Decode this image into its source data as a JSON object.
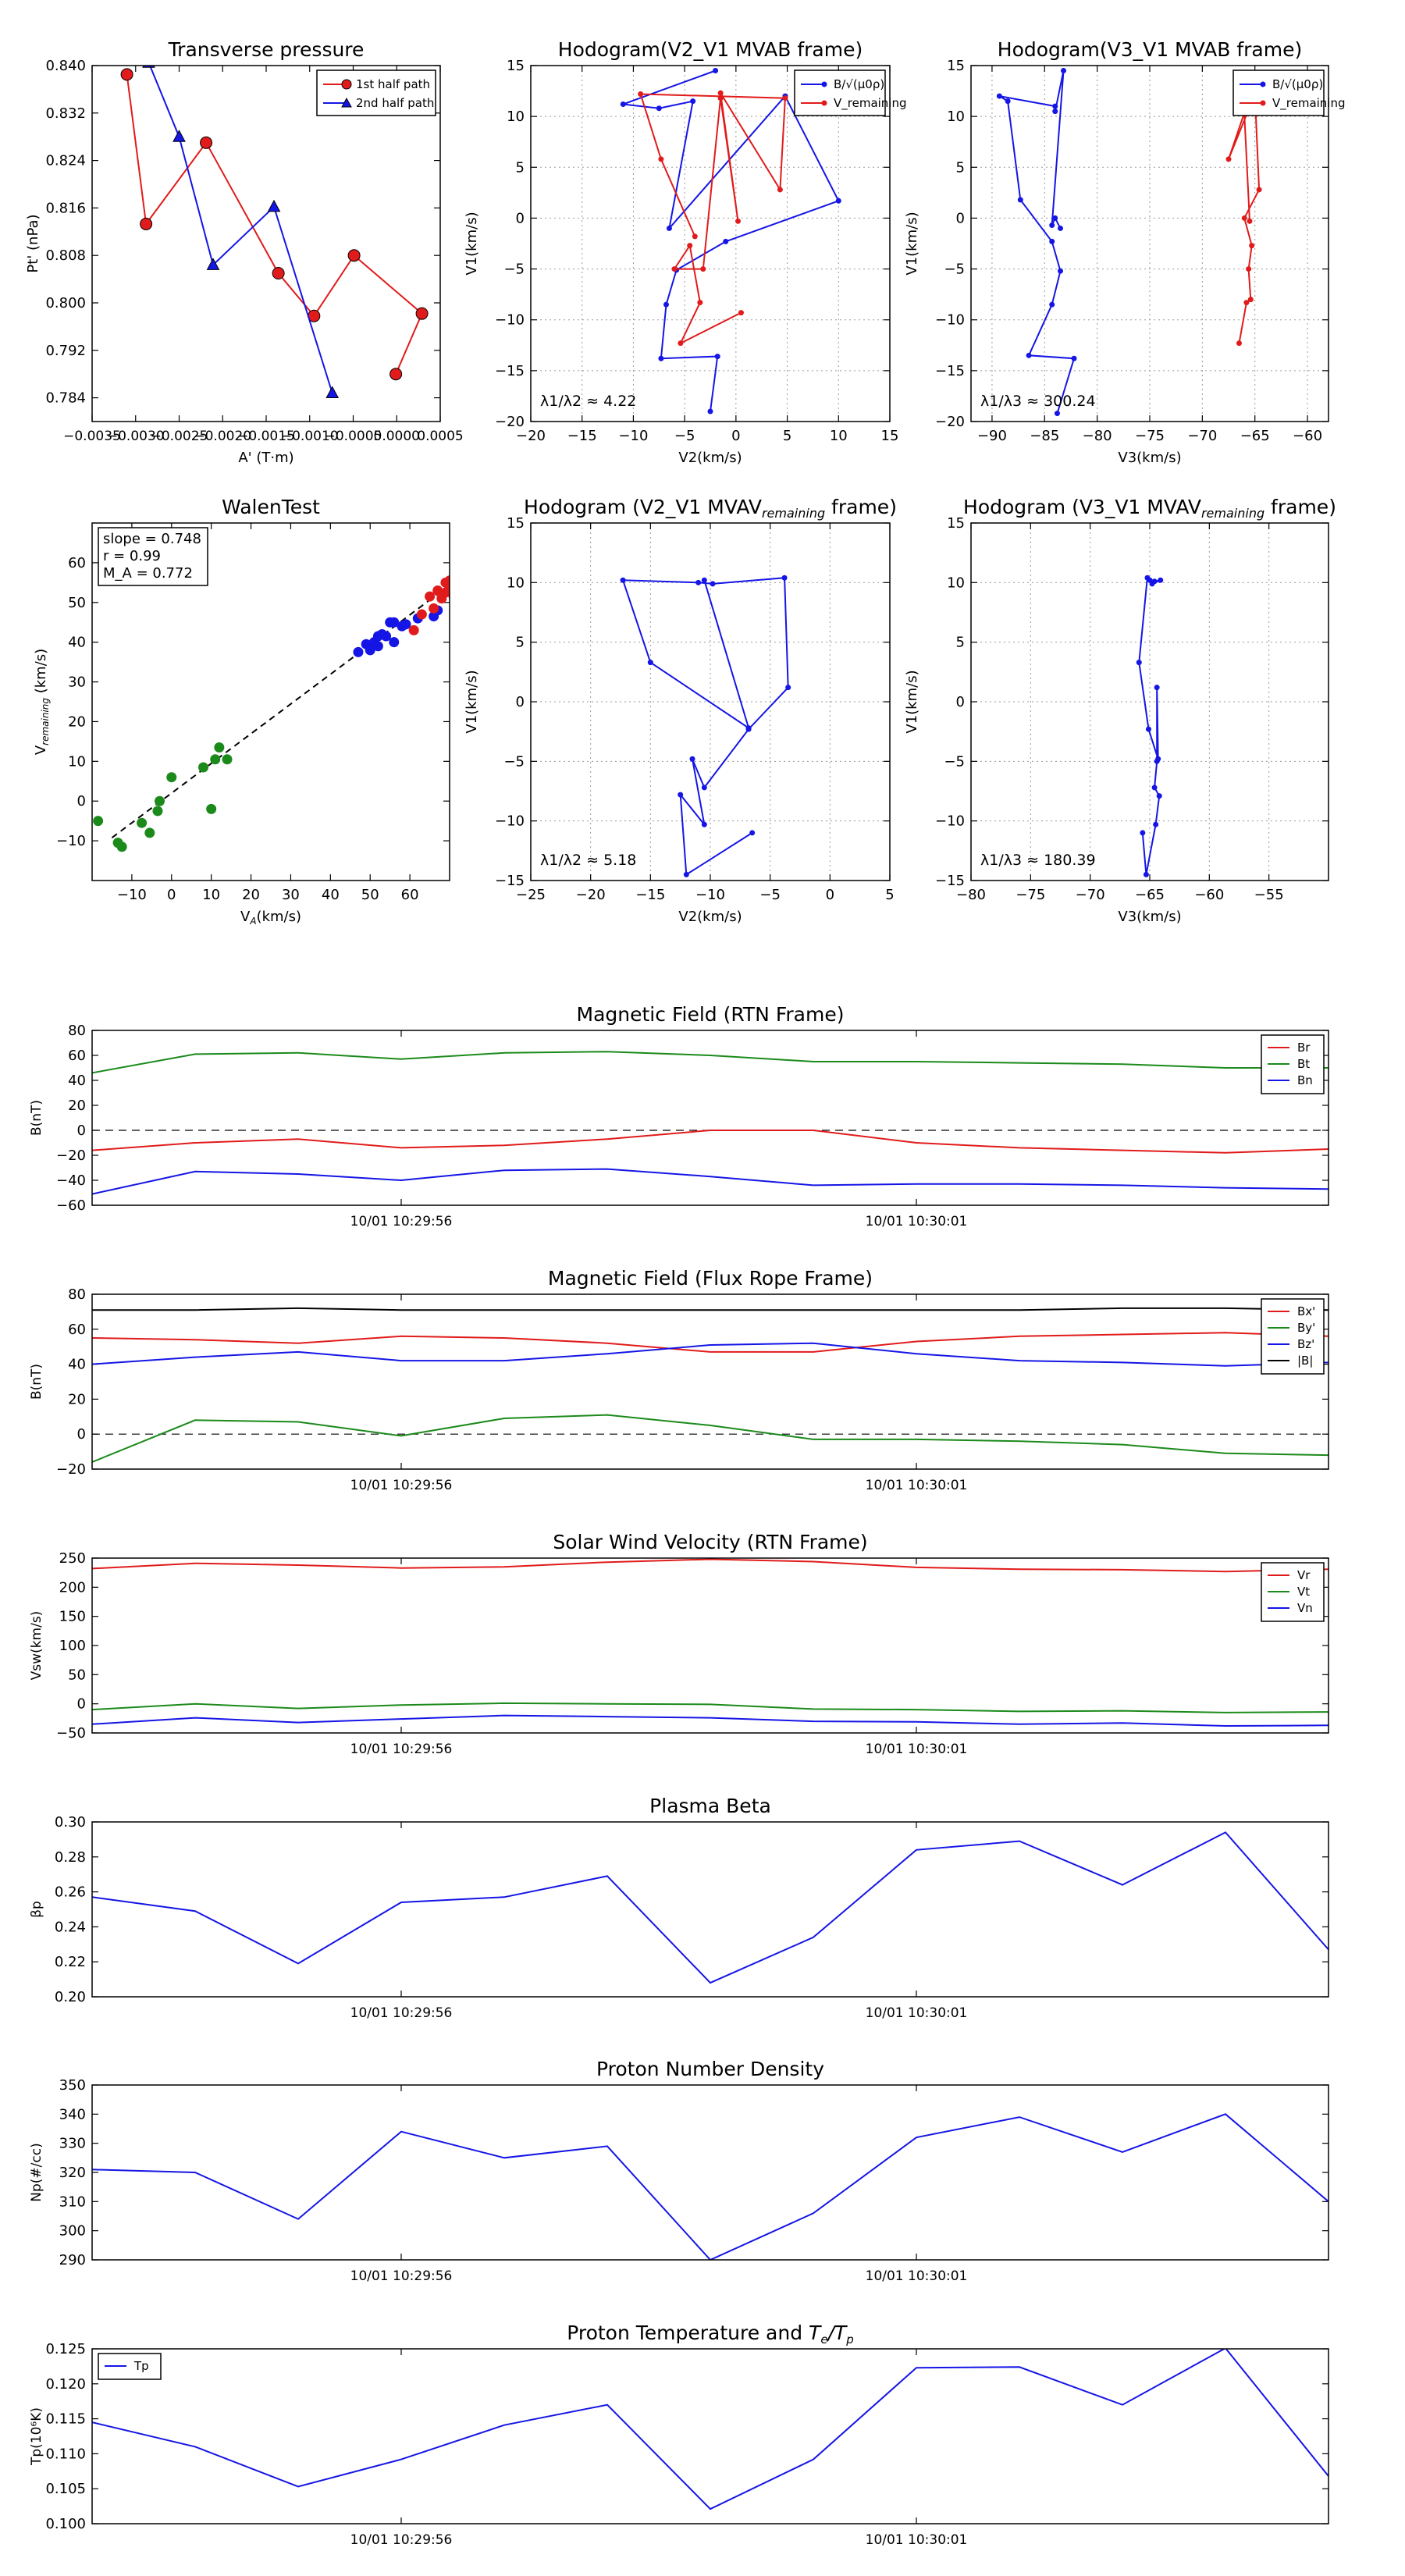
{
  "colors": {
    "red": "#e11b1b",
    "blue": "#1515e6",
    "green": "#1b8a1b",
    "black": "#000000",
    "grid": "#9a9a9a"
  },
  "chart_data": [
    {
      "id": "transverse_pressure",
      "type": "line",
      "title": "Transverse pressure",
      "xlabel": "A' (T·m)",
      "ylabel": "Pt' (nPa)",
      "xlim": [
        -0.0035,
        0.0005
      ],
      "ylim": [
        0.78,
        0.84
      ],
      "xticks": [
        -0.0035,
        -0.003,
        -0.0025,
        -0.002,
        -0.0015,
        -0.001,
        -0.0005,
        0.0,
        0.0005
      ],
      "xticklabels": [
        "−0.0035",
        "−0.0030",
        "−0.0025",
        "−0.0020",
        "−0.0015",
        "−0.0010",
        "−0.0005",
        "0.0000",
        "0.0005"
      ],
      "yticks": [
        0.784,
        0.792,
        0.8,
        0.808,
        0.816,
        0.824,
        0.832,
        0.84
      ],
      "yticklabels": [
        "0.784",
        "0.792",
        "0.800",
        "0.808",
        "0.816",
        "0.824",
        "0.832",
        "0.840"
      ],
      "grid": false,
      "legend": "top-right",
      "series": [
        {
          "name": "1st half path",
          "color": "red",
          "marker": "circle",
          "x": [
            -0.0031,
            -0.00288,
            -0.00219,
            -0.00136,
            -0.00095,
            -0.00049,
            0.00029,
            -1e-05
          ],
          "y": [
            0.8385,
            0.8133,
            0.827,
            0.805,
            0.7978,
            0.808,
            0.7982,
            0.788
          ]
        },
        {
          "name": "2nd half path",
          "color": "blue",
          "marker": "triangle",
          "x": [
            -0.00285,
            -0.0025,
            -0.00211,
            -0.00141,
            -0.00074
          ],
          "y": [
            0.8405,
            0.828,
            0.8064,
            0.8162,
            0.7848
          ]
        }
      ]
    },
    {
      "id": "hodo_v2_mvab",
      "type": "line",
      "title": "Hodogram(V2_V1 MVAB frame)",
      "xlabel": "V2(km/s)",
      "ylabel": "V1(km/s)",
      "xlim": [
        -20,
        15
      ],
      "ylim": [
        -20,
        15
      ],
      "xticks": [
        -20,
        -15,
        -10,
        -5,
        0,
        5,
        10,
        15
      ],
      "yticks": [
        -20,
        -15,
        -10,
        -5,
        0,
        5,
        10,
        15
      ],
      "grid": true,
      "legend": "top-right",
      "annotation": "λ1/λ2 ≈ 4.22",
      "series": [
        {
          "name": "B/√(μ0ρ)",
          "color": "blue",
          "marker": "dot",
          "x": [
            -2.5,
            -1.8,
            -7.3,
            -6.8,
            -5.8,
            -1.0,
            10.0,
            4.8,
            -6.5,
            -4.2,
            -7.5,
            -11.0,
            -2.0
          ],
          "y": [
            -19.0,
            -13.6,
            -13.8,
            -8.5,
            -5.1,
            -2.3,
            1.7,
            12.0,
            -1.0,
            11.5,
            10.8,
            11.2,
            14.5
          ]
        },
        {
          "name": "V_remaining",
          "color": "red",
          "marker": "dot",
          "x": [
            0.5,
            -5.4,
            -3.5,
            -4.5,
            -6.0,
            -3.2,
            -1.5,
            0.2,
            -1.5,
            4.3,
            4.8,
            -9.3,
            -7.3,
            -4.0
          ],
          "y": [
            -9.3,
            -12.3,
            -8.3,
            -2.7,
            -5.0,
            -5.0,
            11.8,
            -0.3,
            12.3,
            2.8,
            11.8,
            12.2,
            5.8,
            -1.8
          ]
        }
      ]
    },
    {
      "id": "hodo_v3_mvab",
      "type": "line",
      "title": "Hodogram(V3_V1 MVAB frame)",
      "xlabel": "V3(km/s)",
      "ylabel": "V1(km/s)",
      "xlim": [
        -92,
        -58
      ],
      "ylim": [
        -20,
        15
      ],
      "xticks": [
        -90,
        -85,
        -80,
        -75,
        -70,
        -65,
        -60
      ],
      "yticks": [
        -20,
        -15,
        -10,
        -5,
        0,
        5,
        10,
        15
      ],
      "grid": true,
      "legend": "top-right",
      "annotation": "λ1/λ3 ≈ 300.24",
      "series": [
        {
          "name": "B/√(μ0ρ)",
          "color": "blue",
          "marker": "dot",
          "x": [
            -83.8,
            -82.2,
            -86.5,
            -84.3,
            -83.5,
            -84.3,
            -87.3,
            -88.5,
            -89.3,
            -84.0,
            -84.0,
            -83.2,
            -84.3,
            -84.0,
            -83.5
          ],
          "y": [
            -19.2,
            -13.8,
            -13.5,
            -8.5,
            -5.2,
            -2.3,
            1.8,
            11.5,
            12.0,
            11.0,
            10.5,
            14.5,
            -0.7,
            0.0,
            -1.0
          ]
        },
        {
          "name": "V_remaining",
          "color": "red",
          "marker": "dot",
          "x": [
            -66.5,
            -65.8,
            -65.4,
            -65.6,
            -65.3,
            -66.0,
            -64.6,
            -65.0,
            -67.5,
            -65.2,
            -66.0,
            -65.5
          ],
          "y": [
            -12.3,
            -8.3,
            -8.0,
            -5.0,
            -2.7,
            0.0,
            2.8,
            12.2,
            5.8,
            12.8,
            10.2,
            -0.3
          ]
        }
      ]
    },
    {
      "id": "walen_test",
      "type": "scatter",
      "title": "WalenTest",
      "xlabel": "V_A(km/s)",
      "ylabel": "V_remaining (km/s)",
      "xlim": [
        -20,
        70
      ],
      "ylim": [
        -20,
        70
      ],
      "xticks": [
        -10,
        0,
        10,
        20,
        30,
        40,
        50,
        60
      ],
      "yticks": [
        -10,
        0,
        10,
        20,
        30,
        40,
        50,
        60
      ],
      "grid": false,
      "annotation": [
        "slope = 0.748",
        "r = 0.99",
        "M_A = 0.772"
      ],
      "fit": {
        "slope": 0.748,
        "intercept": 2.0,
        "x0": -15,
        "x1": 70
      },
      "series": [
        {
          "name": "green",
          "color": "green",
          "x": [
            -18.5,
            -13.5,
            -12.5,
            -7.5,
            -5.5,
            -3.5,
            -3.0,
            0.0,
            8.0,
            10.0,
            11.0,
            12.0,
            14.0
          ],
          "y": [
            -5.0,
            -10.5,
            -11.5,
            -5.5,
            -8.0,
            -2.5,
            0.0,
            6.0,
            8.5,
            -2.0,
            10.5,
            13.5,
            10.5
          ]
        },
        {
          "name": "blue",
          "color": "blue",
          "x": [
            47.0,
            49.0,
            50.0,
            51.0,
            52.0,
            52.0,
            53.0,
            54.0,
            55.0,
            56.0,
            56.0,
            58.0,
            59.0,
            62.0,
            66.0,
            67.0
          ],
          "y": [
            37.5,
            39.5,
            38.0,
            40.0,
            41.5,
            39.0,
            42.0,
            41.5,
            45.0,
            40.0,
            45.0,
            44.0,
            44.5,
            46.0,
            46.5,
            48.0
          ]
        },
        {
          "name": "red",
          "color": "red",
          "x": [
            61.0,
            63.0,
            65.0,
            66.0,
            67.0,
            68.0,
            69.0,
            69.0,
            70.0,
            70.0,
            71.0
          ],
          "y": [
            43.0,
            47.0,
            51.5,
            48.5,
            53.0,
            51.0,
            52.5,
            55.0,
            53.0,
            55.5,
            51.5
          ]
        }
      ]
    },
    {
      "id": "hodo_v2_mvav",
      "type": "line",
      "title": "Hodogram (V2_V1 MVAV_remaining frame)",
      "xlabel": "V2(km/s)",
      "ylabel": "V1(km/s)",
      "xlim": [
        -25,
        5
      ],
      "ylim": [
        -15,
        15
      ],
      "xticks": [
        -25,
        -20,
        -15,
        -10,
        -5,
        0,
        5
      ],
      "yticks": [
        -15,
        -10,
        -5,
        0,
        5,
        10,
        15
      ],
      "grid": true,
      "annotation": "λ1/λ2 ≈ 5.18",
      "series": [
        {
          "name": "B",
          "color": "blue",
          "marker": "dot",
          "x": [
            -6.5,
            -12.0,
            -12.5,
            -10.5,
            -11.5,
            -10.5,
            -6.8,
            -3.5,
            -3.8,
            -9.8,
            -11.0,
            -17.3,
            -15.0,
            -6.8,
            -10.5
          ],
          "y": [
            -11.0,
            -14.5,
            -7.8,
            -10.3,
            -4.8,
            -7.2,
            -2.3,
            1.2,
            10.4,
            9.9,
            10.0,
            10.2,
            3.3,
            -2.2,
            10.2
          ]
        }
      ]
    },
    {
      "id": "hodo_v3_mvav",
      "type": "line",
      "title": "Hodogram (V3_V1 MVAV_remaining frame)",
      "xlabel": "V3(km/s)",
      "ylabel": "V1(km/s)",
      "xlim": [
        -80,
        -50
      ],
      "ylim": [
        -15,
        15
      ],
      "xticks": [
        -80,
        -75,
        -70,
        -65,
        -60,
        -55
      ],
      "yticks": [
        -15,
        -10,
        -5,
        0,
        5,
        10,
        15
      ],
      "grid": true,
      "annotation": "λ1/λ3 ≈ 180.39",
      "series": [
        {
          "name": "B",
          "color": "blue",
          "marker": "dot",
          "x": [
            -65.6,
            -65.3,
            -64.5,
            -64.2,
            -64.6,
            -64.4,
            -64.4,
            -64.3,
            -65.1,
            -65.9,
            -65.2,
            -64.6,
            -64.1,
            -64.8,
            -65.0
          ],
          "y": [
            -11.0,
            -14.5,
            -10.3,
            -7.9,
            -7.2,
            -5.0,
            1.2,
            -4.8,
            -2.3,
            3.3,
            10.4,
            10.1,
            10.2,
            9.9,
            10.2
          ]
        }
      ]
    },
    {
      "id": "mag_rtn",
      "type": "line",
      "title": "Magnetic Field (RTN Frame)",
      "ylabel": "B(nT)",
      "ylim": [
        -60,
        80
      ],
      "yticks": [
        -60,
        -40,
        -20,
        0,
        20,
        40,
        60,
        80
      ],
      "xticklabels": [
        "10/01 10:29:56",
        "10/01 10:30:01"
      ],
      "xtickpos": [
        3,
        8
      ],
      "zero_line": true,
      "legend": "top-right",
      "grid": false,
      "series": [
        {
          "name": "Br",
          "color": "red",
          "values": [
            -16,
            -10,
            -7,
            -14,
            -12,
            -7,
            0,
            0,
            -10,
            -14,
            -16,
            -18,
            -15
          ]
        },
        {
          "name": "Bt",
          "color": "green",
          "values": [
            46,
            61,
            62,
            57,
            62,
            63,
            60,
            55,
            55,
            54,
            53,
            50,
            50
          ]
        },
        {
          "name": "Bn",
          "color": "blue",
          "values": [
            -51,
            -33,
            -35,
            -40,
            -32,
            -31,
            -37,
            -44,
            -43,
            -43,
            -44,
            -46,
            -47
          ]
        }
      ]
    },
    {
      "id": "mag_flux_rope",
      "type": "line",
      "title": "Magnetic Field (Flux Rope Frame)",
      "ylabel": "B(nT)",
      "ylim": [
        -20,
        80
      ],
      "yticks": [
        -20,
        0,
        20,
        40,
        60,
        80
      ],
      "xticklabels": [
        "10/01 10:29:56",
        "10/01 10:30:01"
      ],
      "xtickpos": [
        3,
        8
      ],
      "zero_line": true,
      "legend": "top-right",
      "grid": false,
      "series": [
        {
          "name": "Bx'",
          "color": "red",
          "values": [
            55,
            54,
            52,
            56,
            55,
            52,
            47,
            47,
            53,
            56,
            57,
            58,
            56
          ]
        },
        {
          "name": "By'",
          "color": "green",
          "values": [
            -16,
            8,
            7,
            -1,
            9,
            11,
            5,
            -3,
            -3,
            -4,
            -6,
            -11,
            -12
          ]
        },
        {
          "name": "Bz'",
          "color": "blue",
          "values": [
            40,
            44,
            47,
            42,
            42,
            46,
            51,
            52,
            46,
            42,
            41,
            39,
            41
          ]
        },
        {
          "name": "|B|",
          "color": "black",
          "values": [
            71,
            71,
            72,
            71,
            71,
            71,
            71,
            71,
            71,
            71,
            72,
            72,
            71
          ]
        }
      ]
    },
    {
      "id": "sw_velocity",
      "type": "line",
      "title": "Solar Wind Velocity (RTN Frame)",
      "ylabel": "Vsw(km/s)",
      "ylim": [
        -50,
        250
      ],
      "yticks": [
        -50,
        0,
        50,
        100,
        150,
        200,
        250
      ],
      "xticklabels": [
        "10/01 10:29:56",
        "10/01 10:30:01"
      ],
      "xtickpos": [
        3,
        8
      ],
      "legend": "top-right",
      "grid": false,
      "series": [
        {
          "name": "Vr",
          "color": "red",
          "values": [
            232,
            241,
            238,
            233,
            235,
            243,
            248,
            244,
            234,
            231,
            230,
            227,
            231
          ]
        },
        {
          "name": "Vt",
          "color": "green",
          "values": [
            -10,
            0,
            -8,
            -2,
            1,
            0,
            -1,
            -9,
            -10,
            -13,
            -12,
            -15,
            -14
          ]
        },
        {
          "name": "Vn",
          "color": "blue",
          "values": [
            -35,
            -24,
            -32,
            -26,
            -20,
            -22,
            -24,
            -30,
            -31,
            -35,
            -33,
            -38,
            -37
          ]
        }
      ]
    },
    {
      "id": "plasma_beta",
      "type": "line",
      "title": "Plasma Beta",
      "ylabel": "βp",
      "ylim": [
        0.2,
        0.3
      ],
      "yticks": [
        0.2,
        0.22,
        0.24,
        0.26,
        0.28,
        0.3
      ],
      "yticklabels": [
        "0.20",
        "0.22",
        "0.24",
        "0.26",
        "0.28",
        "0.30"
      ],
      "xticklabels": [
        "10/01 10:29:56",
        "10/01 10:30:01"
      ],
      "xtickpos": [
        3,
        8
      ],
      "grid": false,
      "series": [
        {
          "name": "beta",
          "color": "blue",
          "values": [
            0.257,
            0.249,
            0.219,
            0.254,
            0.257,
            0.269,
            0.208,
            0.234,
            0.284,
            0.289,
            0.264,
            0.294,
            0.227
          ]
        }
      ]
    },
    {
      "id": "proton_density",
      "type": "line",
      "title": "Proton Number Density",
      "ylabel": "Np(#/cc)",
      "ylim": [
        290,
        350
      ],
      "yticks": [
        290,
        300,
        310,
        320,
        330,
        340,
        350
      ],
      "xticklabels": [
        "10/01 10:29:56",
        "10/01 10:30:01"
      ],
      "xtickpos": [
        3,
        8
      ],
      "grid": false,
      "series": [
        {
          "name": "Np",
          "color": "blue",
          "values": [
            321,
            320,
            304,
            334,
            325,
            329,
            290,
            306,
            332,
            339,
            327,
            340,
            310
          ]
        }
      ]
    },
    {
      "id": "proton_temp",
      "type": "line",
      "title": "Proton Temperature and Te/Tp",
      "ylabel": "Tp(10⁶K)",
      "ylim": [
        0.1,
        0.125
      ],
      "yticks": [
        0.1,
        0.105,
        0.11,
        0.115,
        0.12,
        0.125
      ],
      "yticklabels": [
        "0.100",
        "0.105",
        "0.110",
        "0.115",
        "0.120",
        "0.125"
      ],
      "xticklabels": [
        "10/01 10:29:56",
        "10/01 10:30:01"
      ],
      "xtickpos": [
        3,
        8
      ],
      "legend": "top-left",
      "grid": false,
      "series": [
        {
          "name": "Tp",
          "color": "blue",
          "values": [
            0.1145,
            0.111,
            0.1053,
            0.1092,
            0.1141,
            0.117,
            0.1021,
            0.1092,
            0.1223,
            0.1224,
            0.117,
            0.1251,
            0.1068
          ]
        }
      ]
    }
  ]
}
